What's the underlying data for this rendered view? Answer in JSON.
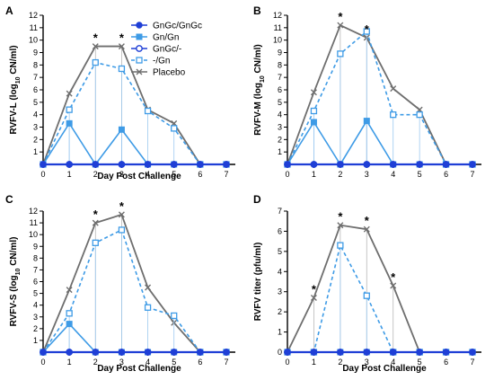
{
  "chart_data": [
    {
      "type": "line",
      "panel_label": "A",
      "xlabel": "Day Post Challenge",
      "ylabel_main": "RVFV-L (log",
      "ylabel_sub": "10",
      "ylabel_end": " CN/ml)",
      "x": [
        0,
        1,
        2,
        3,
        4,
        5,
        6,
        7
      ],
      "xlim": [
        0,
        7
      ],
      "ylim": [
        0,
        12
      ],
      "yticks": [
        1,
        2,
        3,
        4,
        5,
        6,
        7,
        8,
        9,
        10,
        11,
        12
      ],
      "series": [
        {
          "key": "gngc_gngc",
          "values": [
            0,
            0,
            0,
            0,
            0,
            0,
            0,
            0
          ]
        },
        {
          "key": "gn_gn",
          "values": [
            0,
            3.3,
            0,
            2.8,
            0,
            0,
            0,
            0
          ]
        },
        {
          "key": "gngc_minus",
          "values": [
            0,
            0,
            0,
            0,
            0,
            0,
            0,
            0
          ]
        },
        {
          "key": "minus_gn",
          "values": [
            0,
            4.4,
            8.2,
            7.7,
            4.3,
            2.9,
            0,
            0
          ]
        },
        {
          "key": "placebo",
          "values": [
            0,
            5.7,
            9.5,
            9.5,
            4.4,
            3.3,
            0,
            0
          ]
        }
      ],
      "stars": [
        2,
        3
      ],
      "legend": true
    },
    {
      "type": "line",
      "panel_label": "B",
      "xlabel": "",
      "ylabel_main": "RVFV-M (log",
      "ylabel_sub": "10",
      "ylabel_end": " CN/ml)",
      "x": [
        0,
        1,
        2,
        3,
        4,
        5,
        6,
        7
      ],
      "xlim": [
        0,
        7
      ],
      "ylim": [
        0,
        12
      ],
      "yticks": [
        1,
        2,
        3,
        4,
        5,
        6,
        7,
        8,
        9,
        10,
        11,
        12
      ],
      "series": [
        {
          "key": "gngc_gngc",
          "values": [
            0,
            0,
            0,
            0,
            0,
            0,
            0,
            0
          ]
        },
        {
          "key": "gn_gn",
          "values": [
            0,
            3.4,
            0,
            3.5,
            0,
            0,
            0,
            0
          ]
        },
        {
          "key": "gngc_minus",
          "values": [
            0,
            0,
            0,
            0,
            0,
            0,
            0,
            0
          ]
        },
        {
          "key": "minus_gn",
          "values": [
            0,
            4.3,
            8.9,
            10.7,
            4.0,
            4.0,
            0,
            0
          ]
        },
        {
          "key": "placebo",
          "values": [
            0,
            5.8,
            11.2,
            10.2,
            6.1,
            4.4,
            0,
            0
          ]
        }
      ],
      "stars": [
        2,
        3
      ],
      "legend": false
    },
    {
      "type": "line",
      "panel_label": "C",
      "xlabel": "Day Post Challenge",
      "ylabel_main": "RVFV-S (log",
      "ylabel_sub": "10",
      "ylabel_end": " CN/ml)",
      "x": [
        0,
        1,
        2,
        3,
        4,
        5,
        6,
        7
      ],
      "xlim": [
        0,
        7
      ],
      "ylim": [
        0,
        12
      ],
      "yticks": [
        1,
        2,
        3,
        4,
        5,
        6,
        7,
        8,
        9,
        10,
        11,
        12
      ],
      "series": [
        {
          "key": "gngc_gngc",
          "values": [
            0,
            0,
            0,
            0,
            0,
            0,
            0,
            0
          ]
        },
        {
          "key": "gn_gn",
          "values": [
            0,
            2.4,
            0,
            0,
            0,
            0,
            0,
            0
          ]
        },
        {
          "key": "gngc_minus",
          "values": [
            0,
            0,
            0,
            0,
            0,
            0,
            0,
            0
          ]
        },
        {
          "key": "minus_gn",
          "values": [
            0,
            3.3,
            9.3,
            10.4,
            3.8,
            3.1,
            0,
            0
          ]
        },
        {
          "key": "placebo",
          "values": [
            0,
            5.3,
            11.0,
            11.7,
            5.5,
            2.5,
            0,
            0
          ]
        }
      ],
      "stars": [
        2,
        3
      ],
      "legend": false
    },
    {
      "type": "line",
      "panel_label": "D",
      "xlabel": "Day Post Challenge",
      "ylabel_main": "RVFV titer (pfu/ml)",
      "ylabel_sub": "",
      "ylabel_end": "",
      "x": [
        0,
        1,
        2,
        3,
        4,
        5,
        6,
        7
      ],
      "xlim": [
        0,
        7
      ],
      "ylim": [
        0,
        7
      ],
      "yticks": [
        0,
        1,
        2,
        3,
        4,
        5,
        6,
        7
      ],
      "series": [
        {
          "key": "gngc_gngc",
          "values": [
            0,
            0,
            0,
            0,
            0,
            0,
            0,
            0
          ]
        },
        {
          "key": "gn_gn",
          "values": [
            0,
            0,
            0,
            0,
            0,
            0,
            0,
            0
          ]
        },
        {
          "key": "gngc_minus",
          "values": [
            0,
            0,
            0,
            0,
            0,
            0,
            0,
            0
          ]
        },
        {
          "key": "minus_gn",
          "values": [
            0,
            0,
            5.3,
            2.8,
            0,
            0,
            0,
            0
          ]
        },
        {
          "key": "placebo",
          "values": [
            0,
            2.7,
            6.3,
            6.1,
            3.3,
            0,
            0,
            0
          ]
        }
      ],
      "stars": [
        1,
        2,
        3,
        4
      ],
      "legend": false
    }
  ],
  "legend_items": [
    {
      "key": "gngc_gngc",
      "label": "GnGc/GnGc"
    },
    {
      "key": "gn_gn",
      "label": "Gn/Gn"
    },
    {
      "key": "gngc_minus",
      "label": "GnGc/-"
    },
    {
      "key": "minus_gn",
      "label": "-/Gn"
    },
    {
      "key": "placebo",
      "label": "Placebo"
    }
  ],
  "series_styles": {
    "gngc_gngc": {
      "color": "#1f3fd6",
      "dash": "",
      "marker": "circle-filled",
      "width": 2.2
    },
    "gn_gn": {
      "color": "#3e9be6",
      "dash": "",
      "marker": "square-filled",
      "width": 1.6
    },
    "gngc_minus": {
      "color": "#1f3fd6",
      "dash": "",
      "marker": "circle-open",
      "width": 1.6
    },
    "minus_gn": {
      "color": "#3e9be6",
      "dash": "4,3",
      "marker": "square-open",
      "width": 1.6
    },
    "placebo": {
      "color": "#6e6e6e",
      "dash": "",
      "marker": "x",
      "width": 1.8
    }
  },
  "star_symbol": "*"
}
